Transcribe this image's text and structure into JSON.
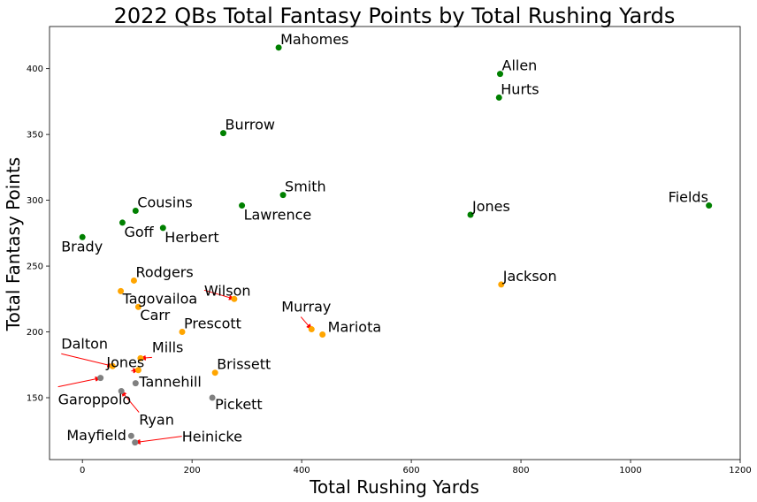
{
  "chart_data": {
    "type": "scatter",
    "title": "2022 QBs Total Fantasy Points by Total Rushing Yards",
    "xlabel": "Total Rushing Yards",
    "ylabel": "Total Fantasy Points",
    "xlim": [
      -60,
      1200
    ],
    "ylim": [
      103,
      432
    ],
    "xticks": [
      0,
      200,
      400,
      600,
      800,
      1000,
      1200
    ],
    "yticks": [
      150,
      200,
      250,
      300,
      350,
      400
    ],
    "grid": false,
    "colors": {
      "tier1": "#008000",
      "tier2": "#ffa500",
      "tier3": "#808080",
      "arrow": "#ff0000"
    },
    "points": [
      {
        "label": "Mahomes",
        "x": 358,
        "y": 416,
        "tier": "tier1"
      },
      {
        "label": "Allen",
        "x": 762,
        "y": 396,
        "tier": "tier1"
      },
      {
        "label": "Hurts",
        "x": 760,
        "y": 378,
        "tier": "tier1"
      },
      {
        "label": "Burrow",
        "x": 257,
        "y": 351,
        "tier": "tier1"
      },
      {
        "label": "Smith",
        "x": 366,
        "y": 304,
        "tier": "tier1"
      },
      {
        "label": "Fields",
        "x": 1143,
        "y": 296,
        "tier": "tier1"
      },
      {
        "label": "Lawrence",
        "x": 291,
        "y": 296,
        "tier": "tier1"
      },
      {
        "label": "Jones",
        "x": 708,
        "y": 289,
        "tier": "tier1"
      },
      {
        "label": "Cousins",
        "x": 97,
        "y": 292,
        "tier": "tier1"
      },
      {
        "label": "Goff",
        "x": 73,
        "y": 283,
        "tier": "tier1"
      },
      {
        "label": "Herbert",
        "x": 147,
        "y": 279,
        "tier": "tier1"
      },
      {
        "label": "Brady",
        "x": 0,
        "y": 272,
        "tier": "tier1"
      },
      {
        "label": "Rodgers",
        "x": 94,
        "y": 239,
        "tier": "tier2"
      },
      {
        "label": "Jackson",
        "x": 764,
        "y": 236,
        "tier": "tier2"
      },
      {
        "label": "Tagovailoa",
        "x": 70,
        "y": 231,
        "tier": "tier2"
      },
      {
        "label": "Wilson",
        "x": 277,
        "y": 225,
        "tier": "tier2"
      },
      {
        "label": "Carr",
        "x": 102,
        "y": 219,
        "tier": "tier2"
      },
      {
        "label": "Murray",
        "x": 418,
        "y": 202,
        "tier": "tier2"
      },
      {
        "label": "Mariota",
        "x": 438,
        "y": 198,
        "tier": "tier2"
      },
      {
        "label": "Prescott",
        "x": 182,
        "y": 200,
        "tier": "tier2"
      },
      {
        "label": "Mills",
        "x": 106,
        "y": 180,
        "tier": "tier2"
      },
      {
        "label": "Jones",
        "x": 102,
        "y": 171,
        "tier": "tier2"
      },
      {
        "label": "Dalton",
        "x": 55,
        "y": 174,
        "tier": "tier2"
      },
      {
        "label": "Brissett",
        "x": 242,
        "y": 169,
        "tier": "tier2"
      },
      {
        "label": "Garoppolo",
        "x": 33,
        "y": 165,
        "tier": "tier3"
      },
      {
        "label": "Tannehill",
        "x": 97,
        "y": 161,
        "tier": "tier3"
      },
      {
        "label": "Ryan",
        "x": 71,
        "y": 155,
        "tier": "tier3"
      },
      {
        "label": "Pickett",
        "x": 237,
        "y": 150,
        "tier": "tier3"
      },
      {
        "label": "Mayfield",
        "x": 89,
        "y": 121,
        "tier": "tier3"
      },
      {
        "label": "Heinicke",
        "x": 96,
        "y": 116,
        "tier": "tier3"
      }
    ]
  }
}
